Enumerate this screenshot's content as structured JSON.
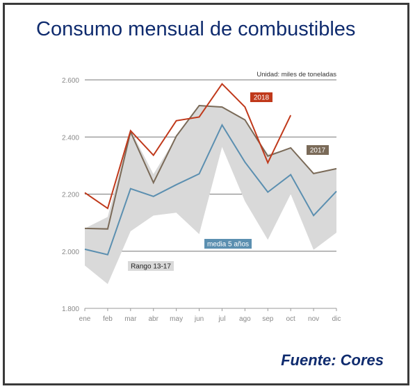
{
  "title": "Consumo mensual de combustibles",
  "source": "Fuente: Cores",
  "chart_data": {
    "type": "line",
    "unit_note": "Unidad: miles de toneladas",
    "categories": [
      "ene",
      "feb",
      "mar",
      "abr",
      "may",
      "jun",
      "jul",
      "ago",
      "sep",
      "oct",
      "nov",
      "dic"
    ],
    "ylim": [
      1800,
      2600
    ],
    "yticks": [
      1800,
      2000,
      2200,
      2400,
      2600
    ],
    "ytick_labels": [
      "1.800",
      "2.000",
      "2.200",
      "2.400",
      "2.600"
    ],
    "grid": true,
    "range": {
      "name": "Rango 13-17",
      "color": "#d9d9d9",
      "upper": [
        2080,
        2120,
        2425,
        2270,
        2400,
        2510,
        2505,
        2460,
        2340,
        2360,
        2270,
        2290
      ],
      "lower": [
        1950,
        1885,
        2070,
        2125,
        2135,
        2060,
        2365,
        2175,
        2040,
        2200,
        2005,
        2065
      ]
    },
    "series": [
      {
        "name": "2018",
        "color": "#c0391b",
        "values": [
          2205,
          2150,
          2422,
          2336,
          2457,
          2470,
          2586,
          2505,
          2310,
          2476,
          null,
          null
        ]
      },
      {
        "name": "2017",
        "color": "#7a6a58",
        "values": [
          2080,
          2078,
          2418,
          2240,
          2403,
          2510,
          2505,
          2460,
          2333,
          2362,
          2272,
          2289
        ]
      },
      {
        "name": "media 5 años",
        "color": "#5b8fb0",
        "values": [
          2007,
          1988,
          2219,
          2192,
          2233,
          2271,
          2442,
          2312,
          2207,
          2268,
          2125,
          2210
        ]
      }
    ]
  }
}
